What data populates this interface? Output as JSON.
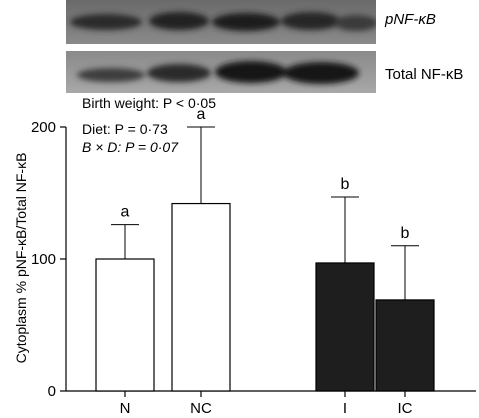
{
  "blots": {
    "top_label": "pNF-κB",
    "bottom_label": "Total NF-κB"
  },
  "stats": {
    "line1": "Birth weight: P < 0·05",
    "line2": "Diet: P = 0·73",
    "line3": "B × D: P = 0·07"
  },
  "chart_data": {
    "type": "bar",
    "categories": [
      "N",
      "NC",
      "I",
      "IC"
    ],
    "values": [
      100,
      142,
      97,
      69
    ],
    "errors": [
      26,
      58,
      50,
      41
    ],
    "significance": [
      "a",
      "a",
      "b",
      "b"
    ],
    "bar_colors": [
      "#ffffff",
      "#ffffff",
      "#1e1e1e",
      "#1e1e1e"
    ],
    "ylabel": "Cytoplasm % pNF-κB/Total NF-κB",
    "yticks": [
      0,
      100,
      200
    ],
    "ylim": [
      0,
      200
    ],
    "grid": false
  }
}
